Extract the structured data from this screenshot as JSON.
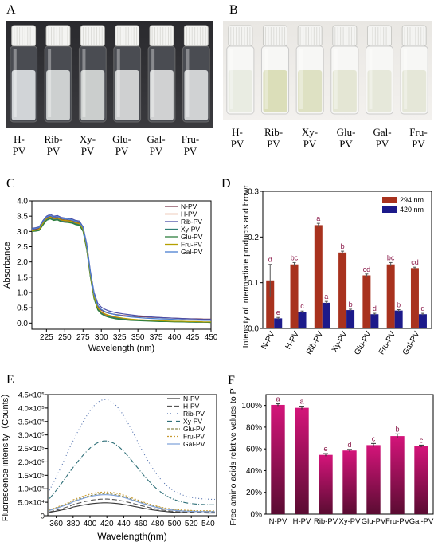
{
  "panels": {
    "A": {
      "letter": "A",
      "vial_labels": [
        "H-\nPV",
        "Rib-\nPV",
        "Xy-\nPV",
        "Glu-\nPV",
        "Gal-\nPV",
        "Fru-\nPV"
      ],
      "liquid_colors": [
        "#e9ecef",
        "#e4e7e6",
        "#e2e5e3",
        "#e6e8e8",
        "#e7e9e9",
        "#e8eaea"
      ]
    },
    "B": {
      "letter": "B",
      "vial_labels": [
        "H-\nPV",
        "Rib-\nPV",
        "Xy-\nPV",
        "Glu-\nPV",
        "Gal-\nPV",
        "Fru-\nPV"
      ],
      "liquid_colors": [
        "#e8ebe0",
        "#d9dcb5",
        "#dcdfc0",
        "#e3e5d2",
        "#e5e7d8",
        "#e4e6d6"
      ]
    },
    "C": {
      "letter": "C"
    },
    "D": {
      "letter": "D"
    },
    "E": {
      "letter": "E"
    },
    "F": {
      "letter": "F"
    }
  },
  "chart_data": [
    {
      "id": "C",
      "type": "line",
      "xlabel": "Wavelength (nm)",
      "ylabel": "Absorbance",
      "xlim": [
        205,
        450
      ],
      "ylim": [
        -0.2,
        4.0
      ],
      "xticks": [
        225,
        250,
        275,
        300,
        325,
        350,
        375,
        400,
        425,
        450
      ],
      "yticks": [
        0.0,
        0.5,
        1.0,
        1.5,
        2.0,
        2.5,
        3.0,
        3.5,
        4.0
      ],
      "x": [
        205,
        210,
        215,
        220,
        225,
        230,
        235,
        240,
        245,
        250,
        255,
        260,
        265,
        270,
        275,
        280,
        285,
        290,
        295,
        300,
        305,
        310,
        320,
        330,
        340,
        350,
        360,
        370,
        380,
        390,
        400,
        410,
        420,
        430,
        440,
        450
      ],
      "series": [
        {
          "name": "N-PV",
          "color": "#7f3f52",
          "values": [
            3.05,
            3.07,
            3.1,
            3.3,
            3.45,
            3.5,
            3.45,
            3.46,
            3.4,
            3.38,
            3.37,
            3.35,
            3.3,
            3.28,
            3.1,
            2.5,
            1.6,
            0.9,
            0.55,
            0.42,
            0.36,
            0.32,
            0.28,
            0.25,
            0.23,
            0.21,
            0.2,
            0.19,
            0.18,
            0.17,
            0.16,
            0.15,
            0.14,
            0.14,
            0.13,
            0.13
          ]
        },
        {
          "name": "H-PV",
          "color": "#c85a1e",
          "values": [
            3.0,
            3.02,
            3.05,
            3.25,
            3.4,
            3.45,
            3.4,
            3.42,
            3.36,
            3.34,
            3.33,
            3.31,
            3.26,
            3.24,
            3.05,
            2.45,
            1.55,
            0.85,
            0.48,
            0.35,
            0.28,
            0.24,
            0.18,
            0.15,
            0.12,
            0.1,
            0.09,
            0.08,
            0.07,
            0.06,
            0.05,
            0.05,
            0.04,
            0.04,
            0.03,
            0.03
          ]
        },
        {
          "name": "Rib-PV",
          "color": "#4a4fa8",
          "values": [
            3.1,
            3.12,
            3.15,
            3.35,
            3.5,
            3.56,
            3.5,
            3.52,
            3.46,
            3.44,
            3.43,
            3.41,
            3.36,
            3.34,
            3.15,
            2.6,
            1.7,
            1.0,
            0.65,
            0.52,
            0.45,
            0.4,
            0.34,
            0.3,
            0.27,
            0.24,
            0.22,
            0.2,
            0.18,
            0.17,
            0.16,
            0.15,
            0.14,
            0.13,
            0.12,
            0.12
          ]
        },
        {
          "name": "Xy-PV",
          "color": "#2e7d76",
          "values": [
            3.0,
            3.02,
            3.05,
            3.22,
            3.38,
            3.43,
            3.38,
            3.4,
            3.34,
            3.32,
            3.31,
            3.29,
            3.24,
            3.22,
            3.03,
            2.43,
            1.52,
            0.82,
            0.45,
            0.32,
            0.25,
            0.21,
            0.16,
            0.13,
            0.1,
            0.09,
            0.08,
            0.07,
            0.06,
            0.05,
            0.05,
            0.04,
            0.04,
            0.03,
            0.03,
            0.03
          ]
        },
        {
          "name": "Glu-PV",
          "color": "#2f7f3f",
          "values": [
            3.0,
            3.01,
            3.03,
            3.2,
            3.36,
            3.41,
            3.36,
            3.38,
            3.32,
            3.3,
            3.29,
            3.27,
            3.22,
            3.2,
            3.0,
            2.4,
            1.5,
            0.8,
            0.43,
            0.3,
            0.23,
            0.19,
            0.14,
            0.11,
            0.09,
            0.08,
            0.07,
            0.06,
            0.05,
            0.05,
            0.04,
            0.04,
            0.03,
            0.03,
            0.03,
            0.02
          ]
        },
        {
          "name": "Fru-PV",
          "color": "#b5a000",
          "values": [
            3.02,
            3.04,
            3.07,
            3.26,
            3.42,
            3.47,
            3.42,
            3.44,
            3.38,
            3.36,
            3.35,
            3.33,
            3.28,
            3.26,
            3.07,
            2.47,
            1.57,
            0.87,
            0.5,
            0.37,
            0.3,
            0.26,
            0.2,
            0.16,
            0.13,
            0.11,
            0.1,
            0.09,
            0.08,
            0.07,
            0.06,
            0.06,
            0.05,
            0.05,
            0.04,
            0.04
          ]
        },
        {
          "name": "Gal-PV",
          "color": "#4a7fd1",
          "values": [
            3.08,
            3.1,
            3.13,
            3.32,
            3.47,
            3.52,
            3.47,
            3.49,
            3.43,
            3.41,
            3.4,
            3.38,
            3.33,
            3.31,
            3.12,
            2.55,
            1.65,
            0.95,
            0.58,
            0.45,
            0.38,
            0.33,
            0.27,
            0.23,
            0.2,
            0.18,
            0.16,
            0.15,
            0.14,
            0.13,
            0.12,
            0.11,
            0.1,
            0.1,
            0.09,
            0.09
          ]
        }
      ]
    },
    {
      "id": "D",
      "type": "bar",
      "ylabel": "Intensity of intermediate products and browning",
      "ylim": [
        0,
        0.3
      ],
      "yticks": [
        0.0,
        0.1,
        0.2,
        0.3
      ],
      "categories": [
        "N-PV",
        "H-PV",
        "Rib-PV",
        "Xy-PV",
        "Glu-PV",
        "Fru-PV",
        "Gal-PV"
      ],
      "legend_position": "top-right",
      "series": [
        {
          "name": "294 nm",
          "color": "#a8321e",
          "values": [
            0.105,
            0.14,
            0.226,
            0.166,
            0.116,
            0.14,
            0.132
          ],
          "errors": [
            0.035,
            0.004,
            0.004,
            0.003,
            0.003,
            0.004,
            0.002
          ],
          "letters": [
            "d",
            "bc",
            "a",
            "b",
            "cd",
            "bc",
            "cd"
          ]
        },
        {
          "name": "420 nm",
          "color": "#1c1a8a",
          "values": [
            0.022,
            0.036,
            0.056,
            0.04,
            0.031,
            0.039,
            0.031
          ],
          "errors": [
            0.002,
            0.002,
            0.003,
            0.002,
            0.002,
            0.002,
            0.002
          ],
          "letters": [
            "e",
            "c",
            "a",
            "b",
            "d",
            "b",
            "d"
          ]
        }
      ]
    },
    {
      "id": "E",
      "type": "line",
      "xlabel": "Wavelength(nm)",
      "ylabel": "Fluorescence intensity（Counts）",
      "xlim": [
        350,
        550
      ],
      "ylim": [
        0,
        450000
      ],
      "xticks": [
        360,
        380,
        400,
        420,
        440,
        460,
        480,
        500,
        520,
        540
      ],
      "yticks": [
        0,
        50000,
        100000,
        150000,
        200000,
        250000,
        300000,
        350000,
        400000,
        450000
      ],
      "ytick_labels": [
        "0",
        "5.0×10⁴",
        "1.0×10⁵",
        "1.5×10⁵",
        "2.0×10⁵",
        "2.5×10⁵",
        "3.0×10⁵",
        "3.5×10⁵",
        "4.0×10⁵",
        "4.5×10⁵"
      ],
      "series": [
        {
          "name": "N-PV",
          "color": "#333333",
          "dash": "",
          "peak": 48000,
          "base_low": 8000,
          "base_high": 10000
        },
        {
          "name": "H-PV",
          "color": "#555555",
          "dash": "6,3",
          "peak": 62000,
          "base_low": 8000,
          "base_high": 12000
        },
        {
          "name": "Rib-PV",
          "color": "#4f6fae",
          "dash": "1,3",
          "peak": 432000,
          "base_low": 50000,
          "base_high": 60000
        },
        {
          "name": "Xy-PV",
          "color": "#2e6f78",
          "dash": "6,2,1,2",
          "peak": 278000,
          "base_low": 35000,
          "base_high": 40000
        },
        {
          "name": "Glu-PV",
          "color": "#8a8a50",
          "dash": "3,2",
          "peak": 82000,
          "base_low": 12000,
          "base_high": 16000
        },
        {
          "name": "Fru-PV",
          "color": "#c89a30",
          "dash": "2,2",
          "peak": 88000,
          "base_low": 14000,
          "base_high": 18000
        },
        {
          "name": "Gal-PV",
          "color": "#7c9fd8",
          "dash": "",
          "peak": 78000,
          "base_low": 12000,
          "base_high": 15000
        }
      ]
    },
    {
      "id": "F",
      "type": "bar",
      "ylabel": "Free amino acids relative values to PV",
      "ylim": [
        0,
        110
      ],
      "yticks": [
        0,
        20,
        40,
        60,
        80,
        100
      ],
      "ytick_labels": [
        "0%",
        "20%",
        "40%",
        "60%",
        "80%",
        "100%"
      ],
      "categories": [
        "N-PV",
        "H-PV",
        "Rib-PV",
        "Xy-PV",
        "Glu-PV",
        "Fru-PV",
        "Gal-PV"
      ],
      "color": "#d4147a",
      "values": [
        100.5,
        97.8,
        54.5,
        58.5,
        63.5,
        71.8,
        62.5
      ],
      "errors": [
        1.0,
        1.5,
        1.2,
        1.0,
        1.5,
        2.0,
        1.0
      ],
      "letters": [
        "a",
        "a",
        "e",
        "d",
        "c",
        "b",
        "c"
      ]
    }
  ]
}
